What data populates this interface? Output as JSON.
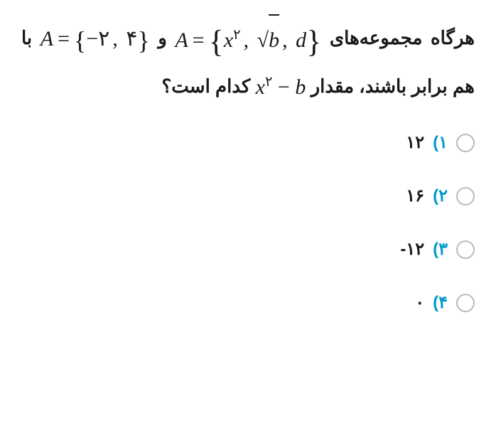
{
  "question": {
    "part1": "هرگاه مجموعه‌های",
    "setA_lhs": "A",
    "setA_x": "x",
    "setA_x_sup": "۲",
    "setA_b": "b",
    "setA_d": "d",
    "part2": "و",
    "setB_lhs": "A",
    "setB_el1_neg": "−",
    "setB_el1": "۲",
    "setB_el2": "۴",
    "part3": "با هم برابر باشند، مقدار",
    "expr_x": "x",
    "expr_sup": "۲",
    "expr_minus": "−",
    "expr_b": "b",
    "part4": "کدام است؟"
  },
  "options": [
    {
      "num": "۱)",
      "value": "۱۲"
    },
    {
      "num": "۲)",
      "value": "۱۶"
    },
    {
      "num": "۳)",
      "value": "-۱۲"
    },
    {
      "num": "۴)",
      "value": "۰"
    }
  ],
  "style": {
    "accent": "#0099cc",
    "radio_border": "#bbbbbb",
    "text_color": "#1a1a1a"
  }
}
